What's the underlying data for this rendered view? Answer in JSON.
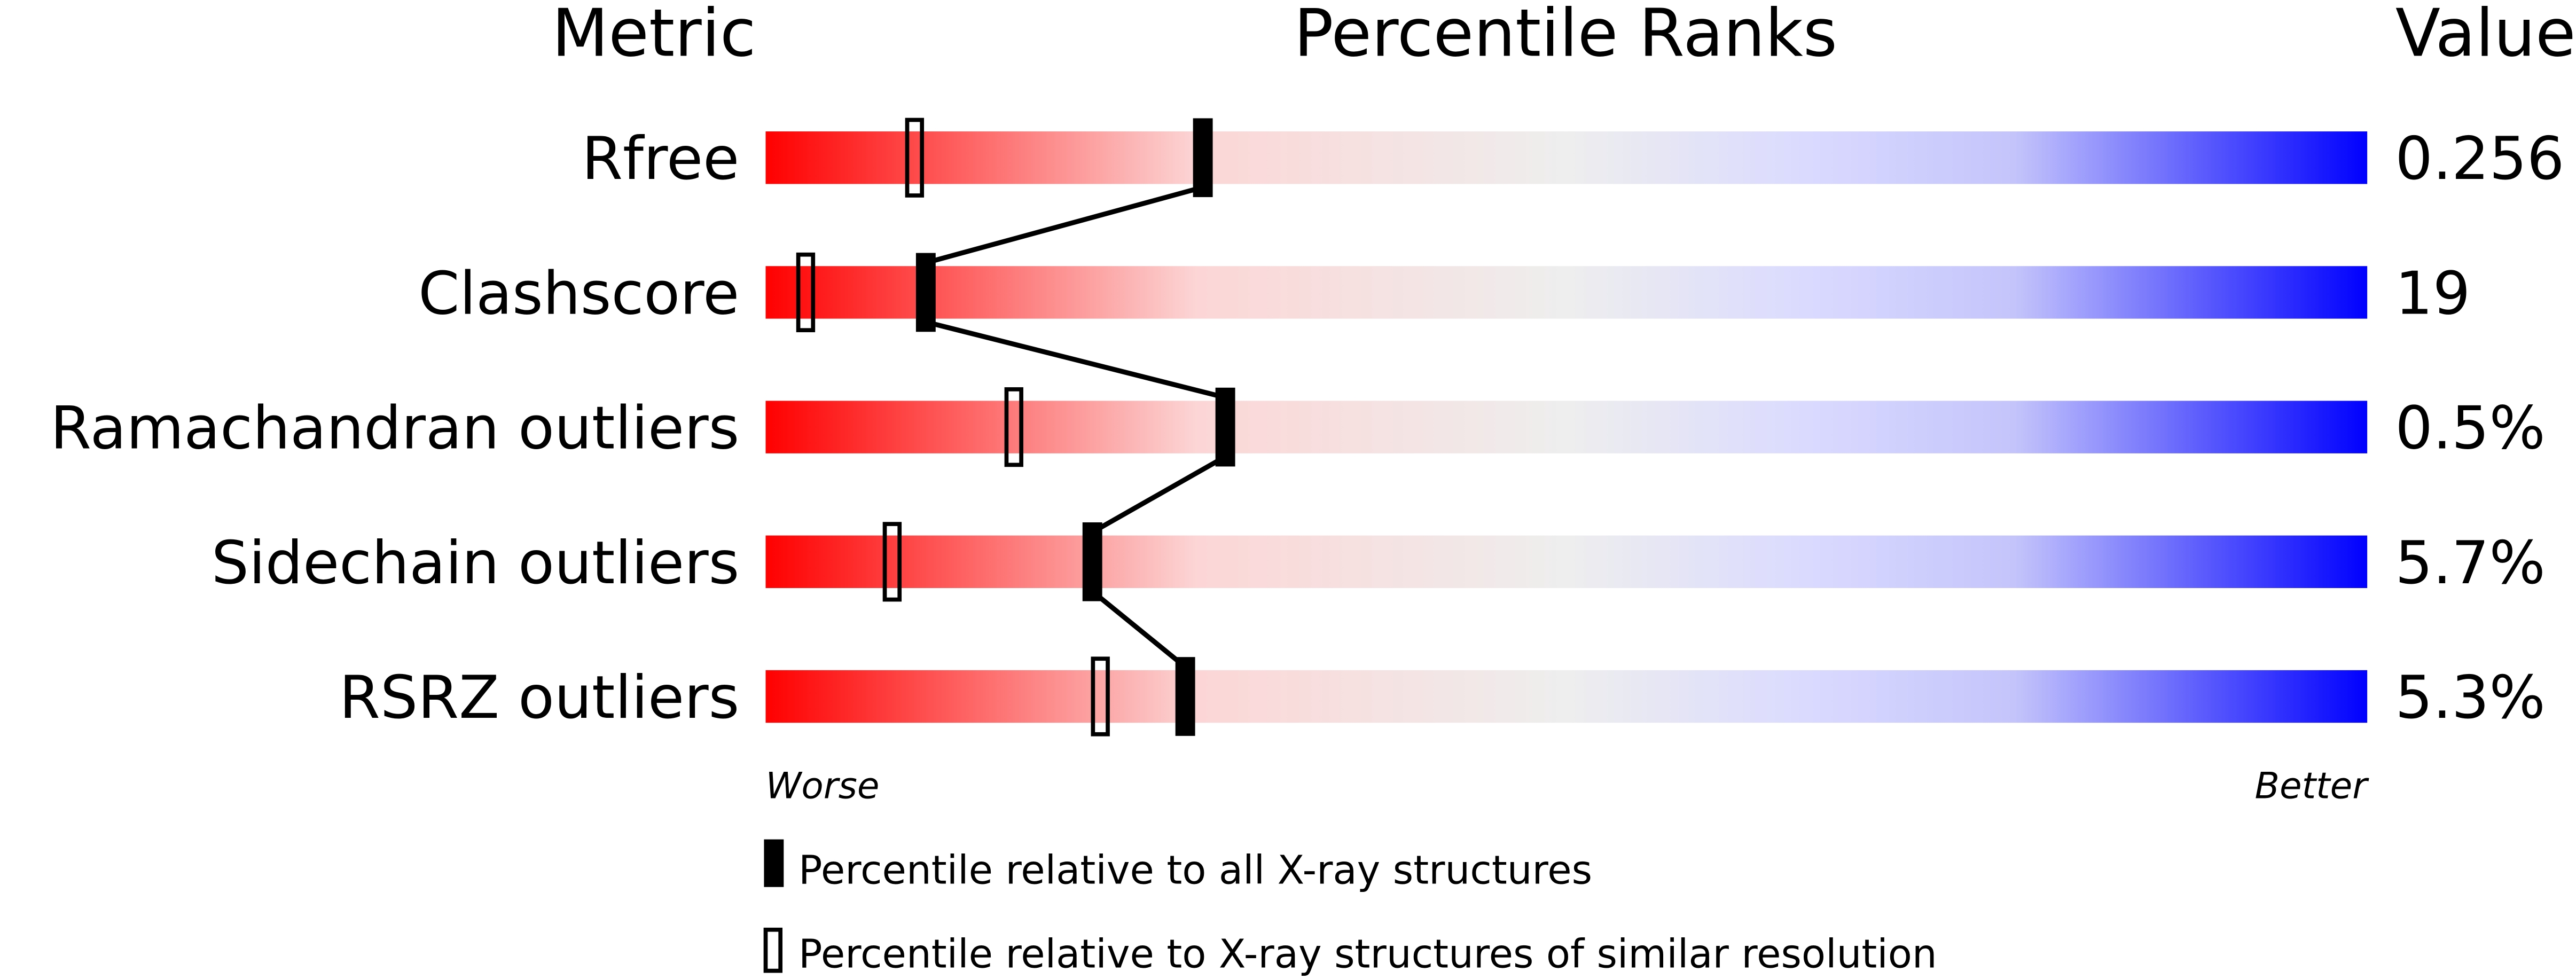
{
  "chart_data": {
    "type": "bar",
    "headers": {
      "metric": "Metric",
      "percentile": "Percentile Ranks",
      "value": "Value"
    },
    "metrics": [
      {
        "name": "Rfree",
        "value": "0.256",
        "percentile_all": 27.3,
        "percentile_similar": 9.3
      },
      {
        "name": "Clashscore",
        "value": "19",
        "percentile_all": 10.0,
        "percentile_similar": 2.5
      },
      {
        "name": "Ramachandran outliers",
        "value": "0.5%",
        "percentile_all": 28.7,
        "percentile_similar": 15.5
      },
      {
        "name": "Sidechain outliers",
        "value": "5.7%",
        "percentile_all": 20.4,
        "percentile_similar": 7.9
      },
      {
        "name": "RSRZ outliers",
        "value": "5.3%",
        "percentile_all": 26.2,
        "percentile_similar": 20.9
      }
    ],
    "xlim": [
      0,
      100
    ],
    "axis_left_label": "Worse",
    "axis_right_label": "Better",
    "legend": [
      {
        "marker": "filled",
        "label": "Percentile relative to all X-ray structures"
      },
      {
        "marker": "hollow",
        "label": "Percentile relative to X-ray structures of similar resolution"
      }
    ],
    "colors": {
      "worse": "#ff0000",
      "mid": "#eeeeee",
      "better": "#0000ff",
      "marker": "#000000"
    }
  }
}
